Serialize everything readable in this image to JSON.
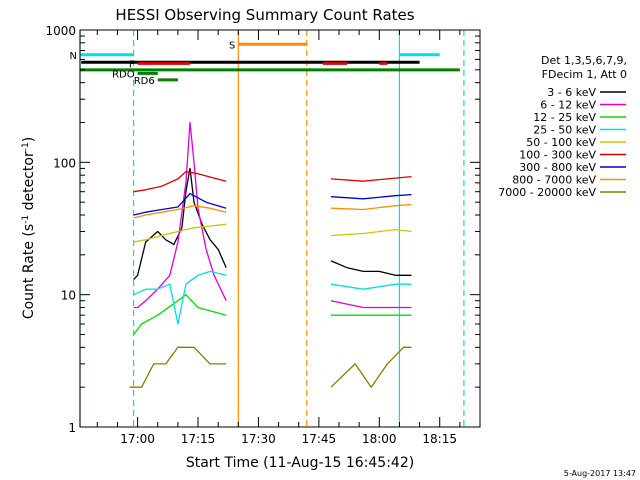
{
  "chart_data": {
    "type": "line",
    "title": "HESSI Observing Summary Count Rates",
    "xlabel": "Start Time (11-Aug-15 16:45:42)",
    "ylabel": "Count Rate (s⁻¹ detector⁻¹)",
    "ylabel_parts": {
      "main": "Count Rate (s",
      "exp1": "-1",
      "mid": " detector",
      "exp2": "-1",
      "end": ")"
    },
    "yscale": "log",
    "ylim": [
      1,
      1000
    ],
    "y_ticks": [
      "1",
      "10",
      "100",
      "1000"
    ],
    "x_ticks": [
      "17:00",
      "17:15",
      "17:30",
      "17:45",
      "18:00",
      "18:15"
    ],
    "xlim": [
      "16:45:42",
      "18:25:00"
    ],
    "timestamp": "5-Aug-2017 13:47",
    "legend": {
      "header": [
        "Det 1,3,5,6,7,9,",
        "FDecim 1, Att 0"
      ],
      "placement": "right"
    },
    "series": [
      {
        "name": "3 - 6 keV",
        "color": "#000000",
        "segments": [
          {
            "t": [
              "16:59",
              "17:00",
              "17:02",
              "17:05",
              "17:07",
              "17:09",
              "17:11",
              "17:12",
              "17:13",
              "17:14",
              "17:16",
              "17:18",
              "17:20",
              "17:22"
            ],
            "v": [
              13,
              14,
              25,
              30,
              26,
              24,
              32,
              60,
              90,
              50,
              34,
              26,
              22,
              16
            ]
          },
          {
            "t": [
              "17:48",
              "17:52",
              "17:56",
              "18:00",
              "18:04",
              "18:08"
            ],
            "v": [
              18,
              16,
              15,
              15,
              14,
              14
            ]
          }
        ]
      },
      {
        "name": "6 - 12 keV",
        "color": "#dd00dd",
        "segments": [
          {
            "t": [
              "16:59",
              "17:00",
              "17:02",
              "17:05",
              "17:08",
              "17:10",
              "17:12",
              "17:13",
              "17:14",
              "17:15",
              "17:17",
              "17:19",
              "17:22"
            ],
            "v": [
              8,
              8,
              9,
              11,
              14,
              25,
              70,
              200,
              100,
              45,
              22,
              14,
              9
            ]
          },
          {
            "t": [
              "17:48",
              "17:56",
              "18:04",
              "18:08"
            ],
            "v": [
              9,
              8,
              8,
              8
            ]
          }
        ]
      },
      {
        "name": "12 - 25 keV",
        "color": "#00dd00",
        "segments": [
          {
            "t": [
              "16:59",
              "17:01",
              "17:05",
              "17:10",
              "17:12",
              "17:15",
              "17:22"
            ],
            "v": [
              5,
              6,
              7,
              9,
              10,
              8,
              7
            ]
          },
          {
            "t": [
              "17:48",
              "17:56",
              "18:04",
              "18:08"
            ],
            "v": [
              7,
              7,
              7,
              7
            ]
          }
        ]
      },
      {
        "name": "25 - 50 keV",
        "color": "#00e0e0",
        "segments": [
          {
            "t": [
              "16:59",
              "17:02",
              "17:05",
              "17:08",
              "17:10",
              "17:12",
              "17:15",
              "17:18",
              "17:22"
            ],
            "v": [
              10,
              11,
              11,
              12,
              6,
              12,
              14,
              15,
              14
            ]
          },
          {
            "t": [
              "17:48",
              "17:56",
              "18:04",
              "18:08"
            ],
            "v": [
              12,
              11,
              12,
              12
            ]
          }
        ]
      },
      {
        "name": "50 - 100 keV",
        "color": "#c8c800",
        "segments": [
          {
            "t": [
              "16:59",
              "17:02",
              "17:06",
              "17:10",
              "17:14",
              "17:18",
              "17:22"
            ],
            "v": [
              25,
              26,
              28,
              30,
              32,
              33,
              34
            ]
          },
          {
            "t": [
              "17:48",
              "17:56",
              "18:04",
              "18:08"
            ],
            "v": [
              28,
              29,
              31,
              30
            ]
          }
        ]
      },
      {
        "name": "100 - 300 keV",
        "color": "#dd0000",
        "segments": [
          {
            "t": [
              "16:59",
              "17:02",
              "17:06",
              "17:10",
              "17:12",
              "17:15",
              "17:19",
              "17:22"
            ],
            "v": [
              60,
              62,
              66,
              75,
              85,
              82,
              76,
              72
            ]
          },
          {
            "t": [
              "17:48",
              "17:56",
              "18:04",
              "18:08"
            ],
            "v": [
              75,
              72,
              76,
              78
            ]
          }
        ]
      },
      {
        "name": "300 - 800 keV",
        "color": "#0000dd",
        "segments": [
          {
            "t": [
              "16:59",
              "17:02",
              "17:06",
              "17:10",
              "17:13",
              "17:17",
              "17:22"
            ],
            "v": [
              40,
              42,
              44,
              46,
              58,
              50,
              45
            ]
          },
          {
            "t": [
              "17:48",
              "17:56",
              "18:04",
              "18:08"
            ],
            "v": [
              55,
              53,
              56,
              57
            ]
          }
        ]
      },
      {
        "name": "800 - 7000 keV",
        "color": "#ff8c00",
        "segments": [
          {
            "t": [
              "16:59",
              "17:02",
              "17:06",
              "17:10",
              "17:14",
              "17:18",
              "17:22"
            ],
            "v": [
              38,
              40,
              42,
              44,
              47,
              45,
              42
            ]
          },
          {
            "t": [
              "17:48",
              "17:56",
              "18:04",
              "18:08"
            ],
            "v": [
              45,
              44,
              47,
              48
            ]
          }
        ]
      },
      {
        "name": "7000 - 20000 keV",
        "color": "#808000",
        "segments": [
          {
            "t": [
              "16:58",
              "17:01",
              "17:04",
              "17:07",
              "17:10",
              "17:14",
              "17:18",
              "17:22"
            ],
            "v": [
              2,
              2,
              3,
              3,
              4,
              4,
              3,
              3
            ]
          },
          {
            "t": [
              "17:48",
              "17:54",
              "17:58",
              "18:02",
              "18:06",
              "18:08"
            ],
            "v": [
              2,
              3,
              2,
              3,
              4,
              4
            ]
          }
        ]
      }
    ],
    "status_bars": [
      {
        "label": "N",
        "color": "#00e0e0",
        "y": 650,
        "spans": [
          [
            "16:45:42",
            "16:59"
          ],
          [
            "18:05",
            "18:15"
          ]
        ]
      },
      {
        "label": "",
        "color": "#000000",
        "y": 570,
        "spans": [
          [
            "16:46",
            "18:10"
          ]
        ]
      },
      {
        "label": "S",
        "color": "#ff8c00",
        "y": 780,
        "spans": [
          [
            "17:25",
            "17:42"
          ]
        ]
      },
      {
        "label": "F",
        "color": "#dd0000",
        "y": 560,
        "spans": [
          [
            "17:00",
            "17:13"
          ],
          [
            "17:46",
            "17:52"
          ],
          [
            "18:00",
            "18:02"
          ]
        ]
      },
      {
        "label": "",
        "color": "#008000",
        "y": 500,
        "spans": [
          [
            "16:45:42",
            "18:20"
          ]
        ]
      },
      {
        "label": "RD6",
        "color": "#008000",
        "y": 420,
        "spans": [
          [
            "17:05",
            "17:10"
          ]
        ]
      },
      {
        "label": "RDO",
        "color": "#008000",
        "y": 470,
        "spans": [
          [
            "17:00",
            "17:05"
          ]
        ]
      }
    ],
    "vertical_markers": [
      {
        "t": "16:45:42",
        "color": "#00e0e0",
        "style": "solid"
      },
      {
        "t": "16:59",
        "color": "#00e0e0",
        "style": "dashed"
      },
      {
        "t": "17:25",
        "color": "#ff8c00",
        "style": "solid"
      },
      {
        "t": "17:42",
        "color": "#ff8c00",
        "style": "dashed"
      },
      {
        "t": "18:05",
        "color": "#00e0e0",
        "style": "solid"
      },
      {
        "t": "18:21",
        "color": "#00e0e0",
        "style": "dashed"
      }
    ]
  }
}
